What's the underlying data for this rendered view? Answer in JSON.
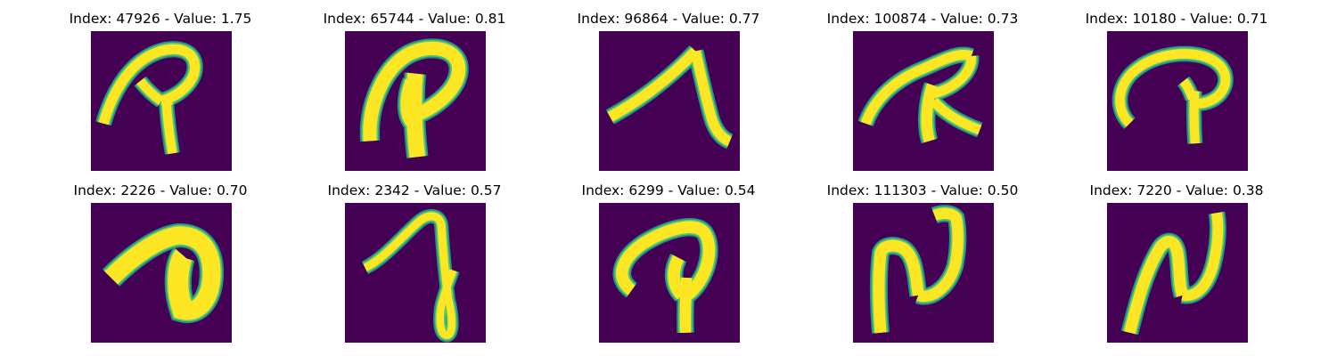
{
  "figure": {
    "background": "#ffffff",
    "image_background": "#440154",
    "stroke_core": "#fde725",
    "stroke_mid": "#5ec962",
    "stroke_edge": "#21918c",
    "panels": [
      {
        "index": "47926",
        "value": "1.75",
        "title": "Index: 47926 - Value: 1.75",
        "glyph": "handwritten P with long left hook"
      },
      {
        "index": "65744",
        "value": "0.81",
        "title": "Index: 65744 - Value: 0.81",
        "glyph": "thick handwritten P"
      },
      {
        "index": "96864",
        "value": "0.77",
        "title": "Index: 96864 - Value: 0.77",
        "glyph": "caret-like stroke"
      },
      {
        "index": "100874",
        "value": "0.73",
        "title": "Index: 100874 - Value: 0.73",
        "glyph": "handwritten R-like glyph"
      },
      {
        "index": "10180",
        "value": "0.71",
        "title": "Index: 10180 - Value: 0.71",
        "glyph": "handwritten P with curl"
      },
      {
        "index": "2226",
        "value": "0.70",
        "title": "Index: 2226 - Value: 0.70",
        "glyph": "thick curved blob stroke"
      },
      {
        "index": "2342",
        "value": "0.57",
        "title": "Index: 2342 - Value: 0.57",
        "glyph": "handwritten a-like loop"
      },
      {
        "index": "6299",
        "value": "0.54",
        "title": "Index: 6299 - Value: 0.54",
        "glyph": "handwritten P with loop"
      },
      {
        "index": "111303",
        "value": "0.50",
        "title": "Index: 111303 - Value: 0.50",
        "glyph": "handwritten N-like glyph"
      },
      {
        "index": "7220",
        "value": "0.38",
        "title": "Index: 7220 - Value: 0.38",
        "glyph": "handwritten N-like glyph"
      }
    ]
  }
}
